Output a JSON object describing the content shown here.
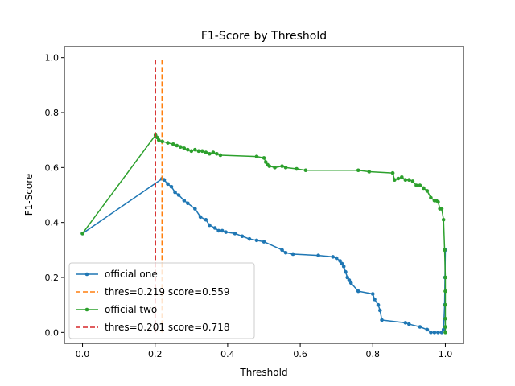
{
  "chart_data": {
    "type": "line",
    "title": "F1-Score by Threshold",
    "xlabel": "Threshold",
    "ylabel": "F1-Score",
    "xlim": [
      -0.05,
      1.05
    ],
    "ylim": [
      -0.04,
      1.04
    ],
    "xticks": [
      0.0,
      0.2,
      0.4,
      0.6,
      0.8,
      1.0
    ],
    "xtick_labels": [
      "0.0",
      "0.2",
      "0.4",
      "0.6",
      "0.8",
      "1.0"
    ],
    "yticks": [
      0.0,
      0.2,
      0.4,
      0.6,
      0.8,
      1.0
    ],
    "ytick_labels": [
      "0.0",
      "0.2",
      "0.4",
      "0.6",
      "0.8",
      "1.0"
    ],
    "grid": false,
    "legend_position": "lower-left",
    "series": [
      {
        "name": "official one",
        "color": "#1f77b4",
        "style": "solid-with-dot-markers",
        "x": [
          0.0,
          0.219,
          0.225,
          0.235,
          0.245,
          0.255,
          0.265,
          0.28,
          0.29,
          0.31,
          0.325,
          0.34,
          0.35,
          0.365,
          0.375,
          0.385,
          0.395,
          0.42,
          0.44,
          0.46,
          0.48,
          0.5,
          0.55,
          0.56,
          0.58,
          0.65,
          0.69,
          0.7,
          0.71,
          0.715,
          0.72,
          0.725,
          0.73,
          0.735,
          0.74,
          0.76,
          0.8,
          0.805,
          0.815,
          0.82,
          0.825,
          0.89,
          0.9,
          0.93,
          0.95,
          0.96,
          0.97,
          0.98,
          0.99,
          0.995,
          0.998,
          0.999,
          1.0
        ],
        "y": [
          0.36,
          0.559,
          0.555,
          0.54,
          0.53,
          0.51,
          0.5,
          0.48,
          0.47,
          0.45,
          0.42,
          0.41,
          0.39,
          0.38,
          0.37,
          0.37,
          0.365,
          0.36,
          0.35,
          0.34,
          0.335,
          0.33,
          0.3,
          0.29,
          0.285,
          0.28,
          0.275,
          0.27,
          0.26,
          0.25,
          0.24,
          0.22,
          0.2,
          0.19,
          0.18,
          0.15,
          0.14,
          0.12,
          0.1,
          0.08,
          0.045,
          0.035,
          0.03,
          0.02,
          0.01,
          0.0,
          0.0,
          0.0,
          0.0,
          0.01,
          0.1,
          0.2,
          0.3
        ]
      },
      {
        "name": "thres=0.219 score=0.559",
        "color": "#ff7f0e",
        "style": "dashed",
        "x": [
          0.219,
          0.219
        ],
        "y": [
          0.0,
          1.0
        ]
      },
      {
        "name": "official two",
        "color": "#2ca02c",
        "style": "solid-with-dot-markers",
        "x": [
          0.0,
          0.201,
          0.205,
          0.21,
          0.22,
          0.235,
          0.25,
          0.26,
          0.27,
          0.28,
          0.29,
          0.3,
          0.31,
          0.32,
          0.33,
          0.34,
          0.35,
          0.36,
          0.37,
          0.38,
          0.48,
          0.5,
          0.505,
          0.51,
          0.515,
          0.53,
          0.55,
          0.56,
          0.59,
          0.615,
          0.76,
          0.79,
          0.855,
          0.86,
          0.87,
          0.88,
          0.89,
          0.9,
          0.91,
          0.92,
          0.93,
          0.94,
          0.95,
          0.96,
          0.97,
          0.975,
          0.98,
          0.985,
          0.99,
          0.995,
          0.998,
          1.0,
          1.0,
          1.0,
          1.0,
          1.0,
          1.0
        ],
        "y": [
          0.36,
          0.718,
          0.71,
          0.7,
          0.695,
          0.69,
          0.685,
          0.68,
          0.675,
          0.67,
          0.665,
          0.66,
          0.665,
          0.66,
          0.66,
          0.655,
          0.65,
          0.655,
          0.65,
          0.645,
          0.64,
          0.635,
          0.62,
          0.61,
          0.605,
          0.6,
          0.605,
          0.6,
          0.595,
          0.59,
          0.59,
          0.585,
          0.58,
          0.555,
          0.56,
          0.565,
          0.555,
          0.555,
          0.55,
          0.535,
          0.535,
          0.525,
          0.515,
          0.49,
          0.48,
          0.48,
          0.475,
          0.45,
          0.45,
          0.41,
          0.3,
          0.2,
          0.15,
          0.1,
          0.05,
          0.02,
          0.0
        ]
      },
      {
        "name": "thres=0.201 score=0.718",
        "color": "#d62728",
        "style": "dashed",
        "x": [
          0.201,
          0.201
        ],
        "y": [
          0.0,
          1.0
        ]
      }
    ]
  }
}
